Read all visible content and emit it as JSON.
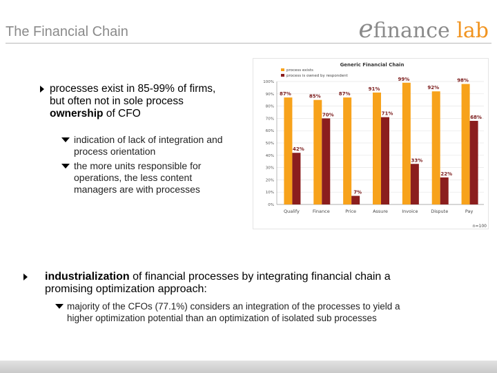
{
  "header": {
    "title": "The Financial Chain",
    "logo_e": "e",
    "logo_finance": "finance",
    "logo_lab": "lab"
  },
  "bullets": {
    "b1_line1": "processes exist in 85-99% of firms,",
    "b1_line2": "but often not in sole process",
    "b1_line3_bold": "ownership",
    "b1_line3_rest": " of CFO",
    "s1_line1": "indication of lack of integration and",
    "s1_line2": "process orientation",
    "s2_line1": "the more units responsible for",
    "s2_line2": "operations, the less content",
    "s2_line3": "managers are with processes",
    "b2_line1_bold": "industrialization",
    "b2_line1_rest": " of financial processes by integrating financial chain a",
    "b2_line2": "promising optimization approach:",
    "s3_line1": "majority of the CFOs (77.1%) considers an integration of the processes to yield a",
    "s3_line2": "higher optimization potential than an optimization of isolated sub processes"
  },
  "chart_data": {
    "type": "bar",
    "title": "Generic Financial Chain",
    "categories": [
      "Qualify",
      "Finance",
      "Price",
      "Assure",
      "Invoice",
      "Dispute",
      "Pay"
    ],
    "series": [
      {
        "name": "process exists",
        "values": [
          87,
          85,
          87,
          91,
          99,
          92,
          98
        ],
        "color": "#f7a21b"
      },
      {
        "name": "process is owned by respondent",
        "values": [
          42,
          70,
          7,
          71,
          33,
          22,
          68
        ],
        "color": "#8b1e1e"
      }
    ],
    "value_labels": [
      [
        "87%",
        "85%",
        "87%",
        "91%",
        "99%",
        "92%",
        "98%"
      ],
      [
        "42%",
        "70%",
        "7%",
        "71%",
        "33%",
        "22%",
        "68%"
      ]
    ],
    "yticks": [
      "0%",
      "10%",
      "20%",
      "30%",
      "40%",
      "50%",
      "60%",
      "70%",
      "80%",
      "90%",
      "100%"
    ],
    "ylim": [
      0,
      100
    ],
    "note": "n=100",
    "legend_position": "top-left"
  }
}
